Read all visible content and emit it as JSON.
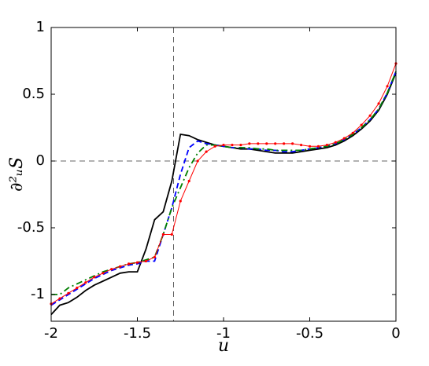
{
  "chart_data": {
    "type": "line",
    "xlabel": "u",
    "ylabel": "∂²ᵤS",
    "xlim": [
      -2,
      0
    ],
    "ylim": [
      -1.2,
      1
    ],
    "xticks": [
      -2,
      -1.5,
      -1,
      -0.5,
      0
    ],
    "yticks": [
      -1,
      -0.5,
      0,
      0.5,
      1
    ],
    "vlines": [
      -1.29
    ],
    "hlines": [
      0
    ],
    "x": [
      -2,
      -1.95,
      -1.9,
      -1.85,
      -1.8,
      -1.75,
      -1.7,
      -1.65,
      -1.6,
      -1.55,
      -1.5,
      -1.45,
      -1.4,
      -1.35,
      -1.3,
      -1.25,
      -1.2,
      -1.15,
      -1.1,
      -1.05,
      -1,
      -0.95,
      -0.9,
      -0.85,
      -0.8,
      -0.75,
      -0.7,
      -0.65,
      -0.6,
      -0.55,
      -0.5,
      -0.45,
      -0.4,
      -0.35,
      -0.3,
      -0.25,
      -0.2,
      -0.15,
      -0.1,
      -0.05,
      0
    ],
    "series": [
      {
        "color": "#000000",
        "linestyle": "solid",
        "values": [
          -1.15,
          -1.08,
          -1.06,
          -1.02,
          -0.97,
          -0.93,
          -0.9,
          -0.87,
          -0.84,
          -0.83,
          -0.83,
          -0.66,
          -0.44,
          -0.38,
          -0.15,
          0.2,
          0.19,
          0.16,
          0.14,
          0.12,
          0.11,
          0.1,
          0.09,
          0.09,
          0.08,
          0.07,
          0.06,
          0.06,
          0.06,
          0.07,
          0.08,
          0.09,
          0.1,
          0.12,
          0.15,
          0.19,
          0.24,
          0.3,
          0.38,
          0.5,
          0.66
        ]
      },
      {
        "color": "#0000ff",
        "linestyle": "dash",
        "values": [
          -1.08,
          -1.04,
          -1.0,
          -0.96,
          -0.92,
          -0.88,
          -0.85,
          -0.82,
          -0.8,
          -0.78,
          -0.77,
          -0.75,
          -0.75,
          -0.55,
          -0.35,
          -0.1,
          0.1,
          0.15,
          0.13,
          0.12,
          0.11,
          0.1,
          0.1,
          0.09,
          0.09,
          0.08,
          0.08,
          0.07,
          0.07,
          0.08,
          0.09,
          0.1,
          0.11,
          0.13,
          0.16,
          0.2,
          0.25,
          0.31,
          0.39,
          0.51,
          0.67
        ]
      },
      {
        "color": "#007f00",
        "linestyle": "dashdot",
        "values": [
          -1.0,
          -1.0,
          -0.95,
          -0.92,
          -0.89,
          -0.86,
          -0.83,
          -0.81,
          -0.79,
          -0.77,
          -0.76,
          -0.74,
          -0.72,
          -0.55,
          -0.35,
          -0.2,
          -0.05,
          0.06,
          0.12,
          0.12,
          0.11,
          0.1,
          0.1,
          0.1,
          0.09,
          0.09,
          0.08,
          0.08,
          0.08,
          0.08,
          0.09,
          0.1,
          0.11,
          0.13,
          0.16,
          0.2,
          0.25,
          0.31,
          0.39,
          0.51,
          0.67
        ]
      },
      {
        "color": "#ff0000",
        "linestyle": "markers",
        "values": [
          -1.07,
          -1.03,
          -0.99,
          -0.95,
          -0.91,
          -0.87,
          -0.84,
          -0.81,
          -0.79,
          -0.77,
          -0.76,
          -0.75,
          -0.72,
          -0.55,
          -0.55,
          -0.3,
          -0.15,
          0.0,
          0.07,
          0.11,
          0.12,
          0.12,
          0.12,
          0.13,
          0.13,
          0.13,
          0.13,
          0.13,
          0.13,
          0.12,
          0.11,
          0.11,
          0.12,
          0.14,
          0.17,
          0.21,
          0.27,
          0.34,
          0.43,
          0.56,
          0.73
        ]
      }
    ]
  }
}
